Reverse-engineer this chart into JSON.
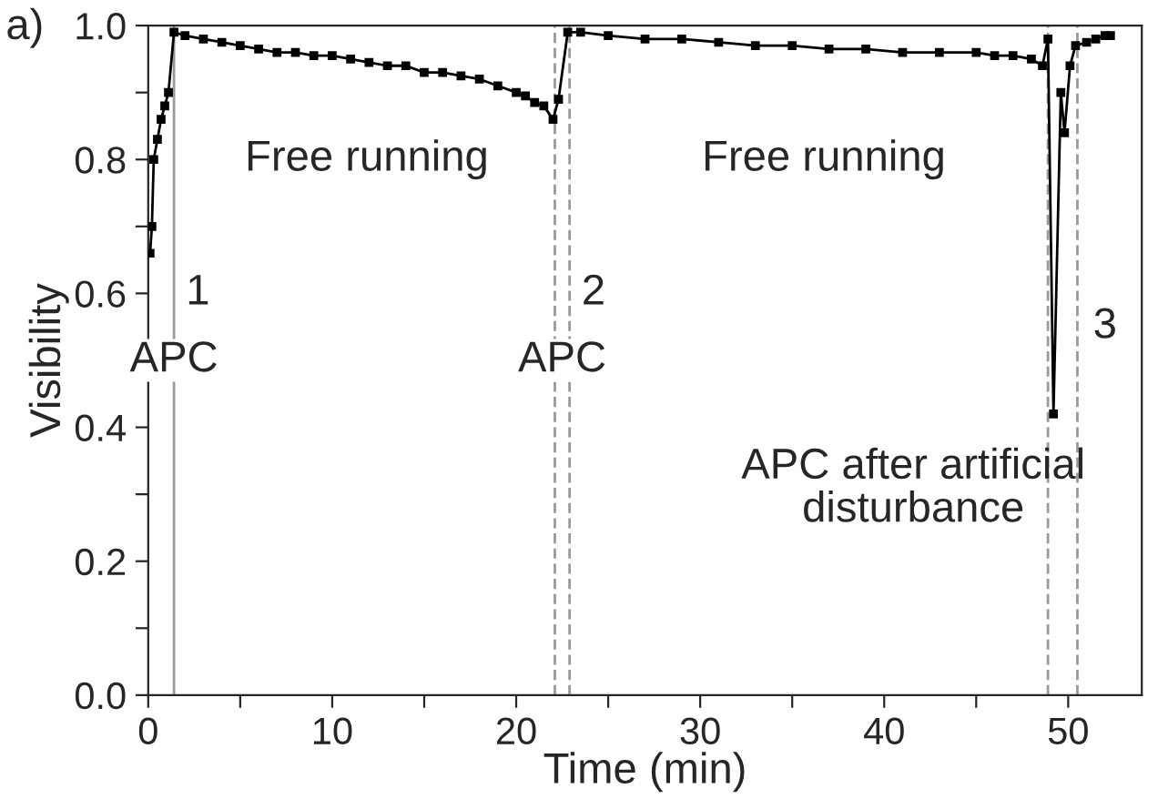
{
  "chart_data": {
    "type": "line",
    "xlabel": "Time (min)",
    "ylabel": "Visibility",
    "xlim": [
      0,
      54
    ],
    "ylim": [
      0,
      1.0
    ],
    "xticks": [
      0,
      {
        "value": 5,
        "label": null
      },
      10,
      {
        "value": 15,
        "label": null
      },
      20,
      {
        "value": 25,
        "label": null
      },
      30,
      {
        "value": 35,
        "label": null
      },
      40,
      {
        "value": 45,
        "label": null
      },
      50
    ],
    "yticks": [
      {
        "value": 0.0,
        "label": "0.0"
      },
      {
        "value": 0.1,
        "label": null
      },
      {
        "value": 0.2,
        "label": "0.2"
      },
      {
        "value": 0.3,
        "label": null
      },
      {
        "value": 0.4,
        "label": "0.4"
      },
      {
        "value": 0.5,
        "label": null
      },
      {
        "value": 0.6,
        "label": "0.6"
      },
      {
        "value": 0.7,
        "label": null
      },
      {
        "value": 0.8,
        "label": "0.8"
      },
      {
        "value": 0.9,
        "label": null
      },
      {
        "value": 1.0,
        "label": "1.0"
      }
    ],
    "grid": false,
    "legend": false,
    "marker": "square",
    "line_style": "solid",
    "series": [
      {
        "color": "#000000",
        "x": [
          0.1,
          0.2,
          0.3,
          0.5,
          0.7,
          0.9,
          1.1,
          1.4,
          2,
          3,
          4,
          5,
          6,
          7,
          8,
          9,
          10,
          11,
          12,
          13,
          14,
          15,
          16,
          17,
          18,
          19,
          20,
          20.5,
          21,
          21.5,
          22.0,
          22.3,
          22.8,
          23.5,
          25,
          27,
          29,
          31,
          33,
          35,
          37,
          39,
          41,
          43,
          45,
          46,
          47,
          48,
          48.6,
          48.9,
          49.2,
          49.6,
          49.8,
          50.1,
          50.4,
          51,
          51.5,
          52,
          52.3
        ],
        "values": [
          0.66,
          0.7,
          0.8,
          0.83,
          0.86,
          0.88,
          0.9,
          0.99,
          0.985,
          0.98,
          0.975,
          0.97,
          0.965,
          0.96,
          0.96,
          0.955,
          0.955,
          0.95,
          0.945,
          0.94,
          0.94,
          0.93,
          0.93,
          0.925,
          0.92,
          0.91,
          0.9,
          0.895,
          0.885,
          0.88,
          0.86,
          0.89,
          0.99,
          0.99,
          0.985,
          0.98,
          0.98,
          0.975,
          0.97,
          0.97,
          0.965,
          0.965,
          0.96,
          0.96,
          0.96,
          0.955,
          0.955,
          0.95,
          0.94,
          0.98,
          0.42,
          0.9,
          0.84,
          0.94,
          0.97,
          0.975,
          0.98,
          0.985,
          0.985
        ]
      }
    ],
    "ref_lines": [
      {
        "axis": "x",
        "value": 1.4,
        "color": "#999999",
        "line_style": "solid"
      },
      {
        "axis": "x",
        "value": 22.1,
        "color": "#999999",
        "line_style": "dashed"
      },
      {
        "axis": "x",
        "value": 22.9,
        "color": "#999999",
        "line_style": "dashed"
      },
      {
        "axis": "x",
        "value": 48.9,
        "color": "#999999",
        "line_style": "dashed"
      },
      {
        "axis": "x",
        "value": 50.5,
        "color": "#999999",
        "line_style": "dashed"
      }
    ],
    "annotations": [
      "a)",
      "Free running",
      "Free running",
      "APC after artificial\ndisturbance",
      {
        "text": "1",
        "x": 2.7,
        "y": 0.6
      },
      {
        "text": "2",
        "x": 24.2,
        "y": 0.6
      },
      {
        "text": "3",
        "x": 52,
        "y": 0.55
      },
      {
        "text": "APC",
        "x": 1.4,
        "y": 0.5
      },
      {
        "text": "APC",
        "x": 22.5,
        "y": 0.5
      }
    ]
  }
}
